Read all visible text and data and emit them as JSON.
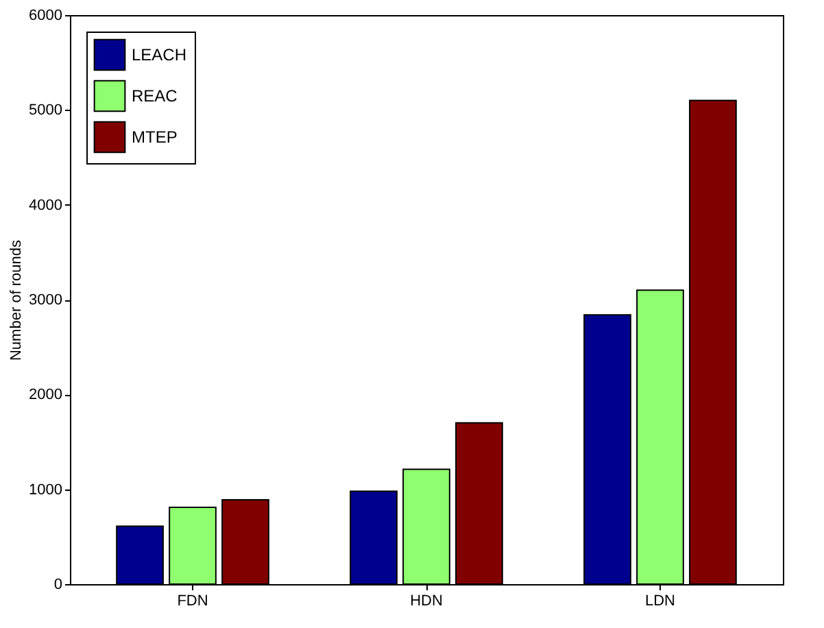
{
  "chart_data": {
    "type": "bar",
    "ylabel": "Number of rounds",
    "categories": [
      "FDN",
      "HDN",
      "LDN"
    ],
    "series": [
      {
        "name": "LEACH",
        "color": "#00008f",
        "values": [
          610,
          980,
          2840
        ]
      },
      {
        "name": "REAC",
        "color": "#8fff6f",
        "values": [
          810,
          1210,
          3100
        ]
      },
      {
        "name": "MTEP",
        "color": "#800000",
        "values": [
          890,
          1700,
          5100
        ]
      }
    ],
    "ylim": [
      0,
      6000
    ],
    "yticks": [
      0,
      1000,
      2000,
      3000,
      4000,
      5000,
      6000
    ],
    "grid": false,
    "legend": "top left"
  }
}
